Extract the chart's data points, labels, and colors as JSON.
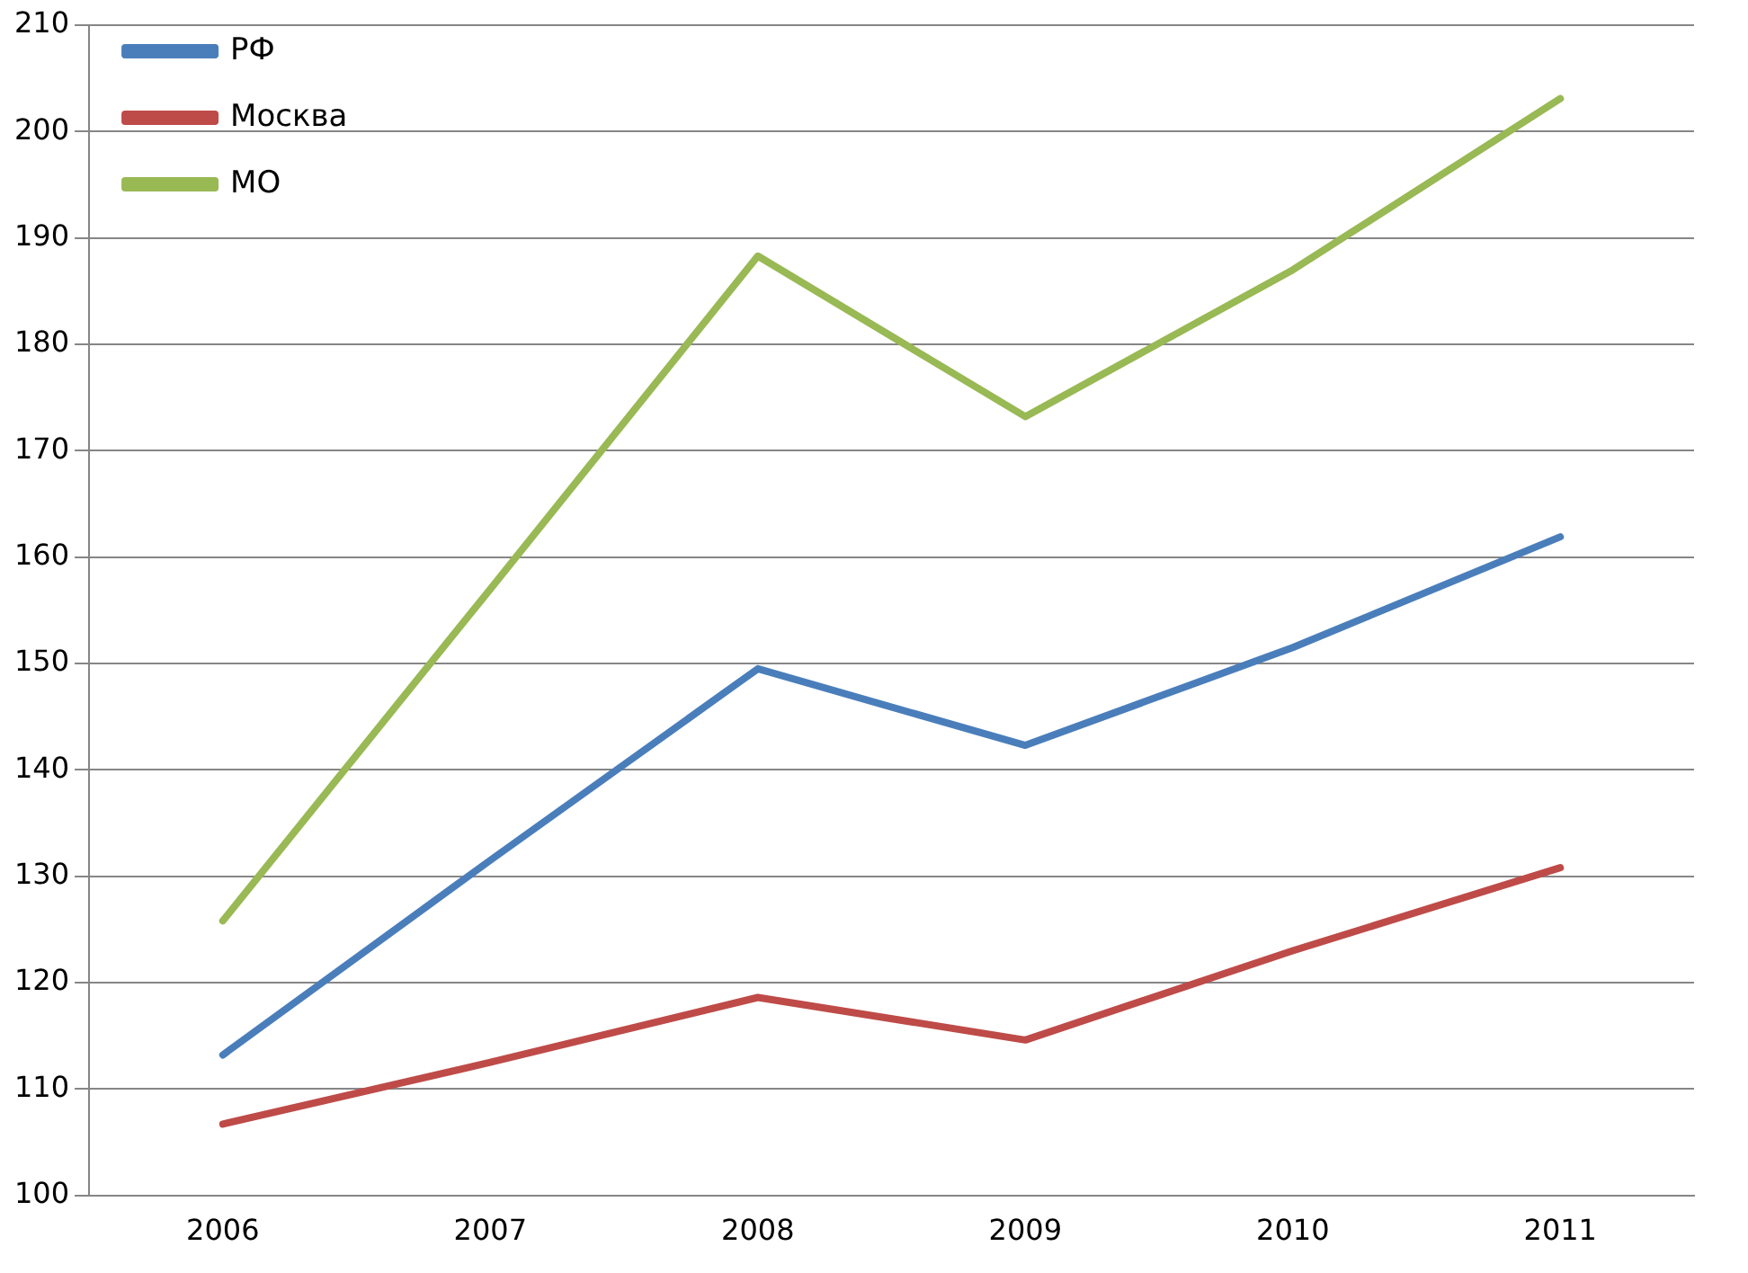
{
  "chart_data": {
    "type": "line",
    "categories": [
      "2006",
      "2007",
      "2008",
      "2009",
      "2010",
      "2011"
    ],
    "series": [
      {
        "name": "РФ",
        "color": "#4a7ebb",
        "values": [
          113.2,
          131.5,
          149.5,
          142.3,
          151.5,
          161.9
        ]
      },
      {
        "name": "Москва",
        "color": "#be4b48",
        "values": [
          106.7,
          112.5,
          118.6,
          114.6,
          123,
          130.8
        ]
      },
      {
        "name": "МО",
        "color": "#98b954",
        "values": [
          125.8,
          157,
          188.3,
          173.2,
          187,
          203.1
        ]
      }
    ],
    "ylim": [
      100,
      210
    ],
    "yticks": [
      100,
      110,
      120,
      130,
      140,
      150,
      160,
      170,
      180,
      190,
      200,
      210
    ],
    "grid": "y",
    "legend": "top left",
    "marker": "none",
    "line_style": "solid"
  }
}
